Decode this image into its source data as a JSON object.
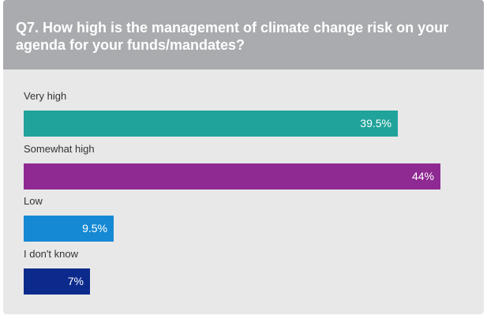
{
  "chart_data": {
    "type": "bar",
    "orientation": "horizontal",
    "title": "Q7. How high is the management of climate change risk on your agenda for your funds/mandates?",
    "categories": [
      "Very high",
      "Somewhat high",
      "Low",
      "I don't know"
    ],
    "values": [
      39.5,
      44,
      9.5,
      7
    ],
    "value_labels": [
      "39.5%",
      "44%",
      "9.5%",
      "7%"
    ],
    "colors": [
      "#20a39a",
      "#8e2a91",
      "#1589d4",
      "#0b2a8c"
    ]
  }
}
